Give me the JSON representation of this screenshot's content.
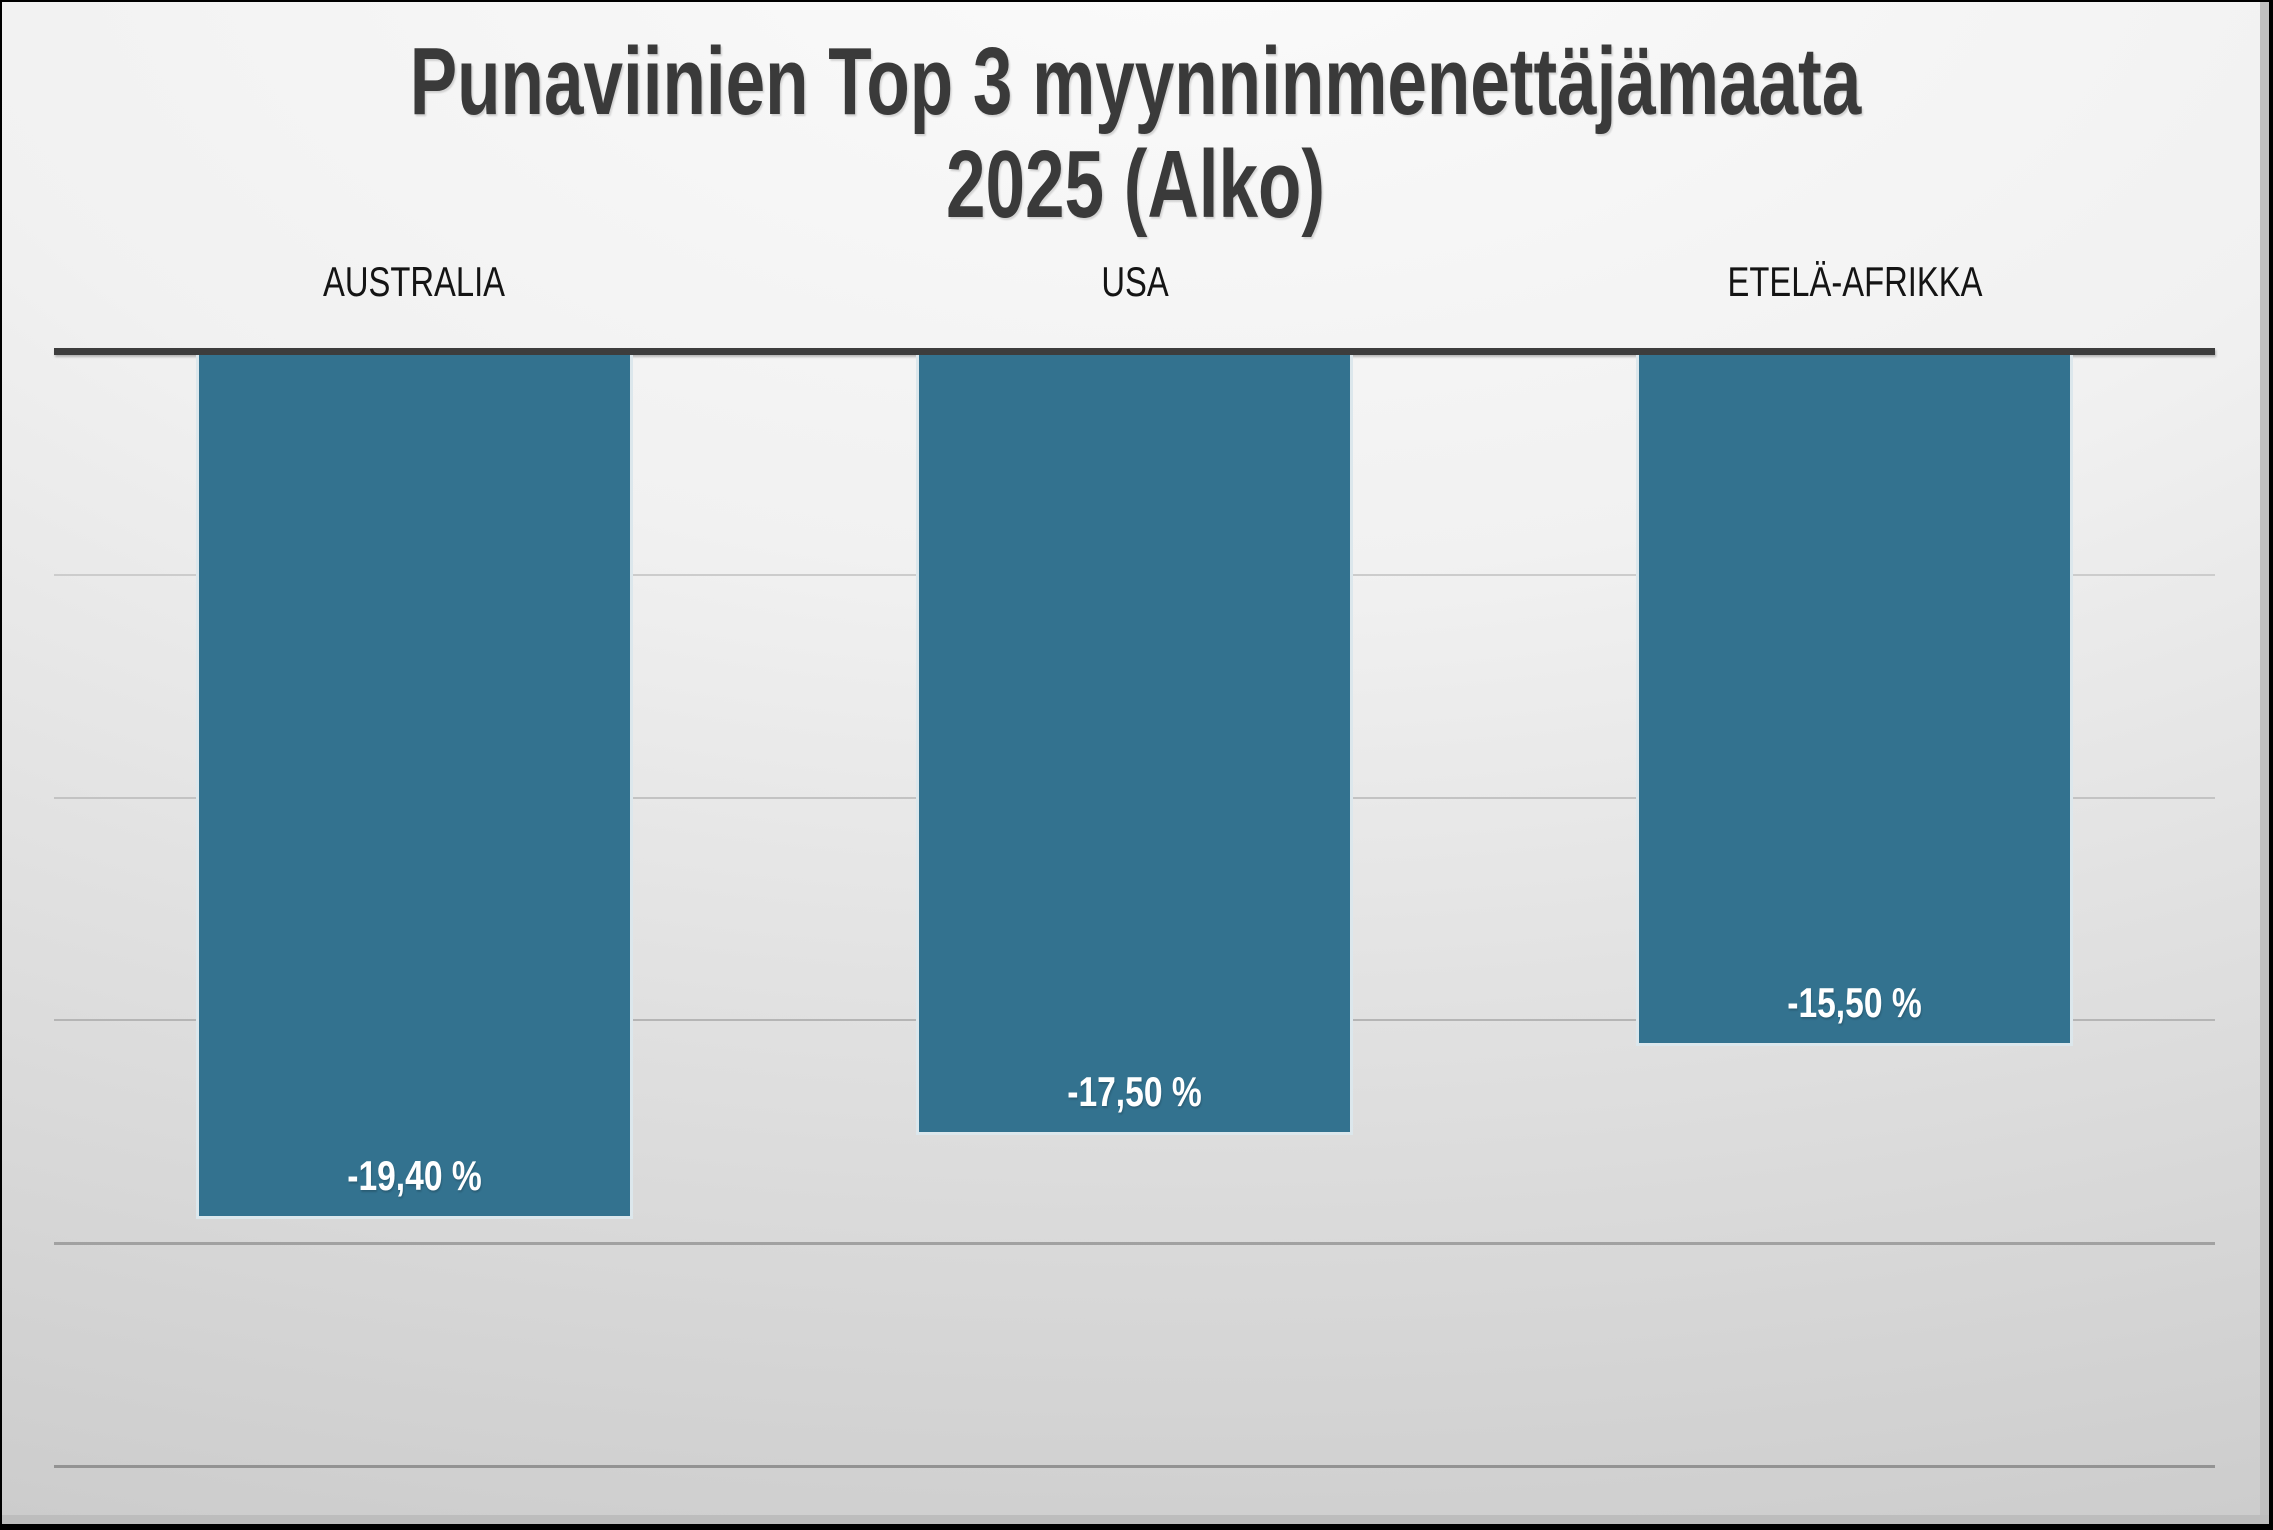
{
  "slide": {
    "title_line1": "Punaviinien Top 3 myynninmenettäjämaata",
    "title_line2": "2025 (Alko)"
  },
  "chart_data": {
    "type": "bar",
    "title": "Punaviinien Top 3 myynninmenettäjämaata 2025 (Alko)",
    "categories": [
      "AUSTRALIA",
      "USA",
      "ETELÄ-AFRIKKA"
    ],
    "values": [
      -19.4,
      -17.5,
      -15.5
    ],
    "value_labels": [
      "-19,40 %",
      "-17,50 %",
      "-15,50 %"
    ],
    "unit": "%",
    "ylim": [
      -26.5,
      0
    ],
    "gridline_interval": 5,
    "grid": true,
    "legend": "none",
    "orientation": "vertical-down",
    "category_label_position": "above-axis",
    "value_label_position": "inside-end",
    "colors": {
      "bar": "#33728f",
      "axis_line": "#3d3d3d",
      "value_label": "#ffffff",
      "category_label": "#141414",
      "title": "#3a3a3a",
      "background_top": "#fbfbfb",
      "background_bottom": "#cbcbcb"
    }
  }
}
